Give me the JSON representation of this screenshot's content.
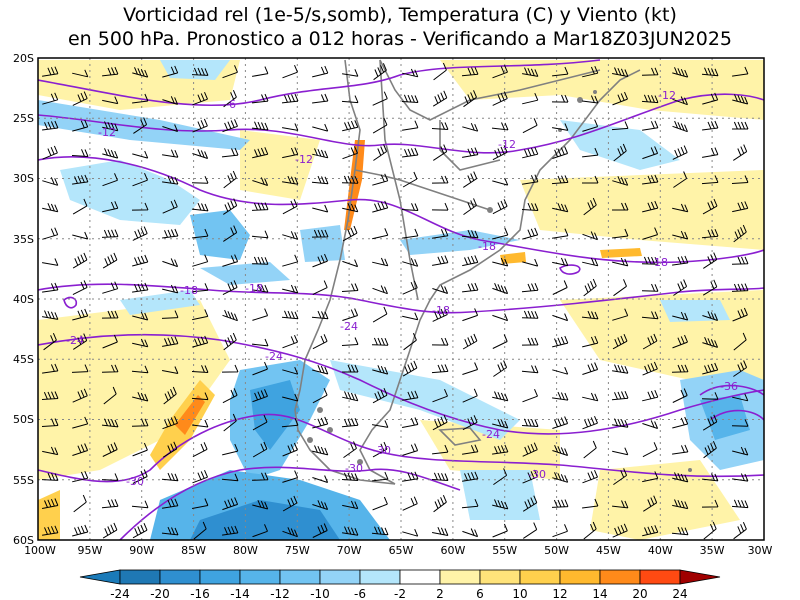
{
  "title": {
    "line1": "Vorticidad rel (1e-5/s,somb), Temperatura (C) y Viento (kt)",
    "line2": "en 500 hPa. Pronostico a 012 horas - Verificando a Mar18Z03JUN2025"
  },
  "map": {
    "lon_ticks": [
      "100W",
      "95W",
      "90W",
      "85W",
      "80W",
      "75W",
      "70W",
      "65W",
      "60W",
      "55W",
      "50W",
      "45W",
      "40W",
      "35W",
      "30W"
    ],
    "lat_ticks": [
      "20S",
      "25S",
      "30S",
      "35S",
      "40S",
      "45S",
      "50S",
      "55S",
      "60S"
    ],
    "temperature_labels": [
      "-6",
      "-12",
      "-12",
      "-12",
      "-12",
      "-18",
      "-18",
      "-18",
      "-18",
      "-18",
      "-24",
      "-24",
      "-24",
      "-24",
      "-30",
      "-30",
      "-30",
      "-30",
      "-36"
    ]
  },
  "colorbar": {
    "labels": [
      "-24",
      "-20",
      "-16",
      "-14",
      "-12",
      "-10",
      "-6",
      "-2",
      "2",
      "6",
      "10",
      "12",
      "14",
      "20",
      "24"
    ],
    "colors": [
      "#1f78b4",
      "#2f8fd0",
      "#3fa3e0",
      "#56b4ea",
      "#72c4f2",
      "#93d3f7",
      "#b4e6fb",
      "#ffffff",
      "#fff3a8",
      "#ffe37a",
      "#ffd04d",
      "#ffb92e",
      "#ff8a1a",
      "#ff4a12",
      "#cc0000"
    ]
  }
}
